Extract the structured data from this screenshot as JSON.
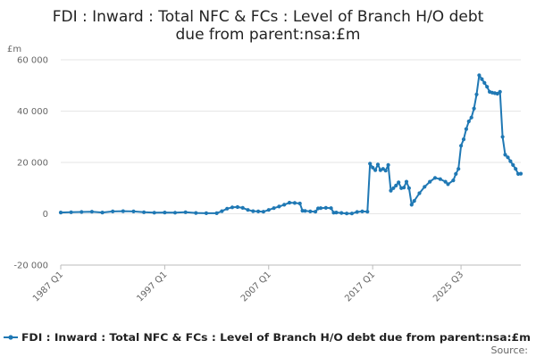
{
  "chart_data": {
    "type": "line",
    "title_lines": [
      "FDI : Inward : Total NFC & FCs : Level of Branch H/O debt",
      "due from parent:nsa:£m"
    ],
    "ylabel": "£m",
    "ylim": [
      -20000,
      60000
    ],
    "y_ticks": [
      60000,
      40000,
      20000,
      0,
      -20000
    ],
    "y_tick_labels": [
      "60 000",
      "40 000",
      "20 000",
      "0",
      "-20 000"
    ],
    "x_ticks": [
      1987.0,
      1997.0,
      2007.0,
      2017.0,
      2025.5
    ],
    "x_tick_labels": [
      "1987 Q1",
      "1997 Q1",
      "2007 Q1",
      "2017 Q1",
      "2025 Q3"
    ],
    "grid": true,
    "legend_position": "bottom",
    "series": [
      {
        "name": "FDI : Inward : Total NFC & FCs : Level of Branch H/O debt due from parent:nsa:£m",
        "color": "#1f78b4",
        "points": [
          [
            1987.0,
            500
          ],
          [
            1988.0,
            600
          ],
          [
            1989.0,
            700
          ],
          [
            1990.0,
            800
          ],
          [
            1991.0,
            500
          ],
          [
            1992.0,
            900
          ],
          [
            1993.0,
            1000
          ],
          [
            1994.0,
            900
          ],
          [
            1995.0,
            600
          ],
          [
            1996.0,
            400
          ],
          [
            1997.0,
            500
          ],
          [
            1998.0,
            400
          ],
          [
            1999.0,
            600
          ],
          [
            2000.0,
            300
          ],
          [
            2001.0,
            200
          ],
          [
            2002.0,
            200
          ],
          [
            2002.5,
            1000
          ],
          [
            2003.0,
            2000
          ],
          [
            2003.5,
            2500
          ],
          [
            2004.0,
            2600
          ],
          [
            2004.5,
            2300
          ],
          [
            2005.0,
            1500
          ],
          [
            2005.5,
            1000
          ],
          [
            2006.0,
            900
          ],
          [
            2006.5,
            800
          ],
          [
            2007.0,
            1500
          ],
          [
            2007.5,
            2200
          ],
          [
            2008.0,
            2800
          ],
          [
            2008.5,
            3500
          ],
          [
            2009.0,
            4300
          ],
          [
            2009.5,
            4200
          ],
          [
            2010.0,
            4000
          ],
          [
            2010.25,
            1200
          ],
          [
            2010.5,
            1100
          ],
          [
            2011.0,
            900
          ],
          [
            2011.5,
            800
          ],
          [
            2011.75,
            2100
          ],
          [
            2012.0,
            2200
          ],
          [
            2012.5,
            2300
          ],
          [
            2013.0,
            2200
          ],
          [
            2013.25,
            400
          ],
          [
            2013.5,
            500
          ],
          [
            2014.0,
            300
          ],
          [
            2014.5,
            100
          ],
          [
            2015.0,
            100
          ],
          [
            2015.5,
            700
          ],
          [
            2016.0,
            900
          ],
          [
            2016.5,
            800
          ],
          [
            2016.75,
            19500
          ],
          [
            2017.0,
            18000
          ],
          [
            2017.25,
            17000
          ],
          [
            2017.5,
            19200
          ],
          [
            2017.75,
            17000
          ],
          [
            2018.0,
            17500
          ],
          [
            2018.25,
            16800
          ],
          [
            2018.5,
            19000
          ],
          [
            2018.75,
            9000
          ],
          [
            2019.0,
            10000
          ],
          [
            2019.25,
            11000
          ],
          [
            2019.5,
            12200
          ],
          [
            2019.75,
            10000
          ],
          [
            2020.0,
            10200
          ],
          [
            2020.25,
            12500
          ],
          [
            2020.5,
            10000
          ],
          [
            2020.75,
            3500
          ],
          [
            2021.0,
            5000
          ],
          [
            2021.5,
            8000
          ],
          [
            2022.0,
            10500
          ],
          [
            2022.5,
            12500
          ],
          [
            2023.0,
            14000
          ],
          [
            2023.5,
            13500
          ],
          [
            2024.0,
            12500
          ],
          [
            2024.25,
            11500
          ],
          [
            2024.75,
            13000
          ],
          [
            2025.0,
            15500
          ],
          [
            2025.25,
            17500
          ],
          [
            2025.5,
            26500
          ],
          [
            2025.75,
            29000
          ],
          [
            2026.0,
            33000
          ],
          [
            2026.25,
            36000
          ],
          [
            2026.5,
            37500
          ],
          [
            2026.75,
            41000
          ],
          [
            2027.0,
            46500
          ],
          [
            2027.25,
            54000
          ],
          [
            2027.5,
            52500
          ],
          [
            2027.75,
            51000
          ],
          [
            2028.0,
            49500
          ],
          [
            2028.25,
            47500
          ],
          [
            2028.5,
            47200
          ],
          [
            2028.75,
            47000
          ],
          [
            2029.0,
            46800
          ],
          [
            2029.25,
            47500
          ],
          [
            2029.5,
            30000
          ],
          [
            2029.75,
            23000
          ],
          [
            2030.0,
            22000
          ],
          [
            2030.25,
            20500
          ],
          [
            2030.5,
            19000
          ],
          [
            2030.75,
            17500
          ],
          [
            2031.0,
            15500
          ],
          [
            2031.25,
            15600
          ]
        ]
      }
    ],
    "source_label": "Source:"
  }
}
